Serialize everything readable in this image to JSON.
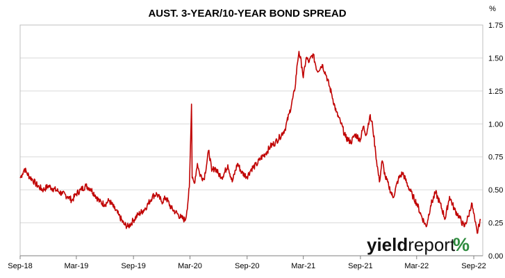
{
  "chart_data": {
    "type": "line",
    "title": "AUST. 3-YEAR/10-YEAR BOND SPREAD",
    "y_unit": "%",
    "xlabel": "",
    "ylabel": "",
    "ylim": [
      0,
      1.75
    ],
    "yticks": [
      "0.00",
      "0.25",
      "0.50",
      "0.75",
      "1.00",
      "1.25",
      "1.50",
      "1.75"
    ],
    "y_axis_side": "right",
    "xlim": [
      "2018-09-01",
      "2022-09-30"
    ],
    "xticks": [
      {
        "label": "Sep-18",
        "date": "2018-09-01"
      },
      {
        "label": "Mar-19",
        "date": "2019-03-01"
      },
      {
        "label": "Sep-19",
        "date": "2019-09-01"
      },
      {
        "label": "Mar-20",
        "date": "2020-03-01"
      },
      {
        "label": "Sep-20",
        "date": "2020-09-01"
      },
      {
        "label": "Mar-21",
        "date": "2021-03-01"
      },
      {
        "label": "Sep-21",
        "date": "2021-09-01"
      },
      {
        "label": "Mar-22",
        "date": "2022-03-01"
      },
      {
        "label": "Sep-22",
        "date": "2022-09-01"
      }
    ],
    "grid": true,
    "legend": "none",
    "line_color": "#c00000",
    "series": [
      {
        "points": [
          [
            "2018-09-01",
            0.59
          ],
          [
            "2018-09-08",
            0.62
          ],
          [
            "2018-09-15",
            0.66
          ],
          [
            "2018-09-22",
            0.63
          ],
          [
            "2018-10-01",
            0.6
          ],
          [
            "2018-10-10",
            0.58
          ],
          [
            "2018-10-20",
            0.55
          ],
          [
            "2018-11-01",
            0.52
          ],
          [
            "2018-11-15",
            0.5
          ],
          [
            "2018-12-01",
            0.53
          ],
          [
            "2018-12-15",
            0.51
          ],
          [
            "2019-01-01",
            0.49
          ],
          [
            "2019-01-15",
            0.47
          ],
          [
            "2019-02-01",
            0.45
          ],
          [
            "2019-02-15",
            0.42
          ],
          [
            "2019-03-01",
            0.47
          ],
          [
            "2019-03-15",
            0.5
          ],
          [
            "2019-04-01",
            0.53
          ],
          [
            "2019-04-15",
            0.51
          ],
          [
            "2019-05-01",
            0.46
          ],
          [
            "2019-05-15",
            0.41
          ],
          [
            "2019-06-01",
            0.39
          ],
          [
            "2019-06-15",
            0.42
          ],
          [
            "2019-07-01",
            0.36
          ],
          [
            "2019-07-15",
            0.31
          ],
          [
            "2019-08-01",
            0.24
          ],
          [
            "2019-08-15",
            0.22
          ],
          [
            "2019-09-01",
            0.27
          ],
          [
            "2019-09-15",
            0.31
          ],
          [
            "2019-10-01",
            0.34
          ],
          [
            "2019-10-15",
            0.38
          ],
          [
            "2019-11-01",
            0.45
          ],
          [
            "2019-11-15",
            0.47
          ],
          [
            "2019-12-01",
            0.41
          ],
          [
            "2019-12-15",
            0.44
          ],
          [
            "2020-01-01",
            0.36
          ],
          [
            "2020-01-15",
            0.33
          ],
          [
            "2020-02-01",
            0.29
          ],
          [
            "2020-02-15",
            0.27
          ],
          [
            "2020-02-20",
            0.34
          ],
          [
            "2020-02-28",
            0.52
          ],
          [
            "2020-03-06",
            1.15
          ],
          [
            "2020-03-08",
            0.59
          ],
          [
            "2020-03-15",
            0.55
          ],
          [
            "2020-03-25",
            0.7
          ],
          [
            "2020-04-01",
            0.62
          ],
          [
            "2020-04-15",
            0.58
          ],
          [
            "2020-05-01",
            0.8
          ],
          [
            "2020-05-10",
            0.64
          ],
          [
            "2020-05-20",
            0.67
          ],
          [
            "2020-06-01",
            0.62
          ],
          [
            "2020-06-15",
            0.6
          ],
          [
            "2020-07-01",
            0.69
          ],
          [
            "2020-07-15",
            0.56
          ],
          [
            "2020-08-01",
            0.7
          ],
          [
            "2020-08-15",
            0.63
          ],
          [
            "2020-09-01",
            0.6
          ],
          [
            "2020-09-15",
            0.66
          ],
          [
            "2020-10-01",
            0.69
          ],
          [
            "2020-10-15",
            0.74
          ],
          [
            "2020-11-01",
            0.78
          ],
          [
            "2020-11-15",
            0.83
          ],
          [
            "2020-12-01",
            0.86
          ],
          [
            "2020-12-15",
            0.9
          ],
          [
            "2021-01-01",
            0.96
          ],
          [
            "2021-01-15",
            1.08
          ],
          [
            "2021-02-01",
            1.25
          ],
          [
            "2021-02-10",
            1.46
          ],
          [
            "2021-02-15",
            1.55
          ],
          [
            "2021-02-25",
            1.43
          ],
          [
            "2021-03-01",
            1.35
          ],
          [
            "2021-03-10",
            1.5
          ],
          [
            "2021-03-20",
            1.47
          ],
          [
            "2021-04-01",
            1.53
          ],
          [
            "2021-04-15",
            1.4
          ],
          [
            "2021-05-01",
            1.45
          ],
          [
            "2021-05-15",
            1.36
          ],
          [
            "2021-06-01",
            1.22
          ],
          [
            "2021-06-15",
            1.09
          ],
          [
            "2021-07-01",
            1.0
          ],
          [
            "2021-07-15",
            0.9
          ],
          [
            "2021-08-01",
            0.86
          ],
          [
            "2021-08-15",
            0.92
          ],
          [
            "2021-09-01",
            0.88
          ],
          [
            "2021-09-10",
            0.98
          ],
          [
            "2021-09-20",
            0.92
          ],
          [
            "2021-10-01",
            1.06
          ],
          [
            "2021-10-10",
            0.99
          ],
          [
            "2021-10-20",
            0.78
          ],
          [
            "2021-11-01",
            0.56
          ],
          [
            "2021-11-10",
            0.72
          ],
          [
            "2021-11-20",
            0.6
          ],
          [
            "2021-12-01",
            0.53
          ],
          [
            "2021-12-15",
            0.44
          ],
          [
            "2022-01-01",
            0.58
          ],
          [
            "2022-01-15",
            0.63
          ],
          [
            "2022-02-01",
            0.53
          ],
          [
            "2022-02-15",
            0.46
          ],
          [
            "2022-03-01",
            0.4
          ],
          [
            "2022-03-15",
            0.31
          ],
          [
            "2022-04-01",
            0.22
          ],
          [
            "2022-04-15",
            0.38
          ],
          [
            "2022-05-01",
            0.48
          ],
          [
            "2022-05-15",
            0.4
          ],
          [
            "2022-06-01",
            0.28
          ],
          [
            "2022-06-15",
            0.45
          ],
          [
            "2022-07-01",
            0.35
          ],
          [
            "2022-07-15",
            0.3
          ],
          [
            "2022-08-01",
            0.22
          ],
          [
            "2022-08-15",
            0.3
          ],
          [
            "2022-08-25",
            0.4
          ],
          [
            "2022-09-05",
            0.26
          ],
          [
            "2022-09-12",
            0.17
          ],
          [
            "2022-09-18",
            0.23
          ],
          [
            "2022-09-22",
            0.28
          ]
        ]
      }
    ]
  },
  "watermark": {
    "bold_part": "yield",
    "regular_part": "report",
    "symbol": "%",
    "symbol_color": "#2e8b3e",
    "symbol_accent": "#d62728"
  }
}
